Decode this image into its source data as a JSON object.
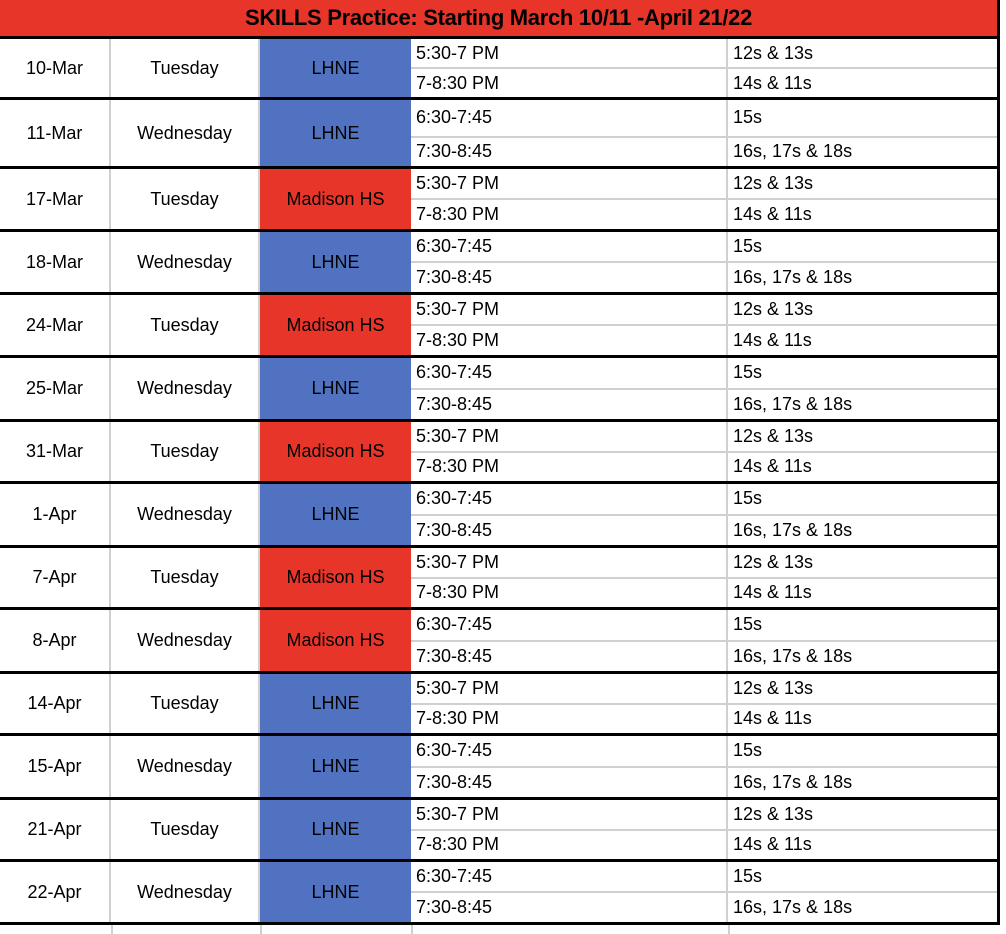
{
  "title": "SKILLS Practice: Starting March 10/11 -April 21/22",
  "colors": {
    "header_red": "#E8352A",
    "lhne_blue": "#5072C0",
    "madison_red": "#E8352A"
  },
  "rows": [
    {
      "date": "10-Mar",
      "day": "Tuesday",
      "location": "LHNE",
      "slots": [
        {
          "time": "5:30-7 PM",
          "group": "12s & 13s"
        },
        {
          "time": "7-8:30 PM",
          "group": "14s & 11s"
        }
      ]
    },
    {
      "date": "11-Mar",
      "day": "Wednesday",
      "location": "LHNE",
      "slots": [
        {
          "time": "6:30-7:45",
          "group": "15s"
        },
        {
          "time": "7:30-8:45",
          "group": "16s, 17s & 18s"
        }
      ]
    },
    {
      "date": "17-Mar",
      "day": "Tuesday",
      "location": "Madison HS",
      "slots": [
        {
          "time": "5:30-7 PM",
          "group": "12s & 13s"
        },
        {
          "time": "7-8:30 PM",
          "group": "14s & 11s"
        }
      ]
    },
    {
      "date": "18-Mar",
      "day": "Wednesday",
      "location": "LHNE",
      "slots": [
        {
          "time": "6:30-7:45",
          "group": "15s"
        },
        {
          "time": "7:30-8:45",
          "group": "16s, 17s & 18s"
        }
      ]
    },
    {
      "date": "24-Mar",
      "day": "Tuesday",
      "location": "Madison HS",
      "slots": [
        {
          "time": "5:30-7 PM",
          "group": "12s & 13s"
        },
        {
          "time": "7-8:30 PM",
          "group": "14s & 11s"
        }
      ]
    },
    {
      "date": "25-Mar",
      "day": "Wednesday",
      "location": "LHNE",
      "slots": [
        {
          "time": "6:30-7:45",
          "group": "15s"
        },
        {
          "time": "7:30-8:45",
          "group": "16s, 17s & 18s"
        }
      ]
    },
    {
      "date": "31-Mar",
      "day": "Tuesday",
      "location": "Madison HS",
      "slots": [
        {
          "time": "5:30-7 PM",
          "group": "12s & 13s"
        },
        {
          "time": "7-8:30 PM",
          "group": "14s & 11s"
        }
      ]
    },
    {
      "date": "1-Apr",
      "day": "Wednesday",
      "location": "LHNE",
      "slots": [
        {
          "time": "6:30-7:45",
          "group": "15s"
        },
        {
          "time": "7:30-8:45",
          "group": "16s, 17s & 18s"
        }
      ]
    },
    {
      "date": "7-Apr",
      "day": "Tuesday",
      "location": "Madison HS",
      "slots": [
        {
          "time": "5:30-7 PM",
          "group": "12s & 13s"
        },
        {
          "time": "7-8:30 PM",
          "group": "14s & 11s"
        }
      ]
    },
    {
      "date": "8-Apr",
      "day": "Wednesday",
      "location": "Madison HS",
      "slots": [
        {
          "time": "6:30-7:45",
          "group": "15s"
        },
        {
          "time": "7:30-8:45",
          "group": "16s, 17s & 18s"
        }
      ]
    },
    {
      "date": "14-Apr",
      "day": "Tuesday",
      "location": "LHNE",
      "slots": [
        {
          "time": "5:30-7 PM",
          "group": "12s & 13s"
        },
        {
          "time": "7-8:30 PM",
          "group": "14s & 11s"
        }
      ]
    },
    {
      "date": "15-Apr",
      "day": "Wednesday",
      "location": "LHNE",
      "slots": [
        {
          "time": "6:30-7:45",
          "group": "15s"
        },
        {
          "time": "7:30-8:45",
          "group": "16s, 17s & 18s"
        }
      ]
    },
    {
      "date": "21-Apr",
      "day": "Tuesday",
      "location": "LHNE",
      "slots": [
        {
          "time": "5:30-7 PM",
          "group": "12s & 13s"
        },
        {
          "time": "7-8:30 PM",
          "group": "14s & 11s"
        }
      ]
    },
    {
      "date": "22-Apr",
      "day": "Wednesday",
      "location": "LHNE",
      "slots": [
        {
          "time": "6:30-7:45",
          "group": "15s"
        },
        {
          "time": "7:30-8:45",
          "group": "16s, 17s & 18s"
        }
      ]
    }
  ]
}
